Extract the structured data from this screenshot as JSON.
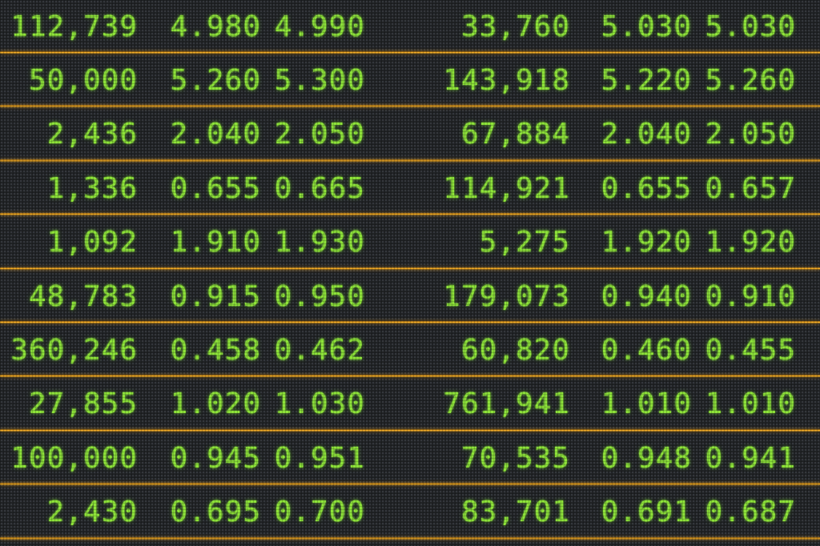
{
  "board": {
    "text_color": "#8ee33a",
    "divider_color": "#f2a521",
    "background_color": "#222427",
    "rows": [
      [
        "112,739",
        "4.980",
        "4.990",
        "33,760",
        "5.030",
        "5.030"
      ],
      [
        "50,000",
        "5.260",
        "5.300",
        "143,918",
        "5.220",
        "5.260"
      ],
      [
        "2,436",
        "2.040",
        "2.050",
        "67,884",
        "2.040",
        "2.050"
      ],
      [
        "1,336",
        "0.655",
        "0.665",
        "114,921",
        "0.655",
        "0.657"
      ],
      [
        "1,092",
        "1.910",
        "1.930",
        "5,275",
        "1.920",
        "1.920"
      ],
      [
        "48,783",
        "0.915",
        "0.950",
        "179,073",
        "0.940",
        "0.910"
      ],
      [
        "360,246",
        "0.458",
        "0.462",
        "60,820",
        "0.460",
        "0.455"
      ],
      [
        "27,855",
        "1.020",
        "1.030",
        "761,941",
        "1.010",
        "1.010"
      ],
      [
        "100,000",
        "0.945",
        "0.951",
        "70,535",
        "0.948",
        "0.941"
      ],
      [
        "2,430",
        "0.695",
        "0.700",
        "83,701",
        "0.691",
        "0.687"
      ]
    ]
  }
}
